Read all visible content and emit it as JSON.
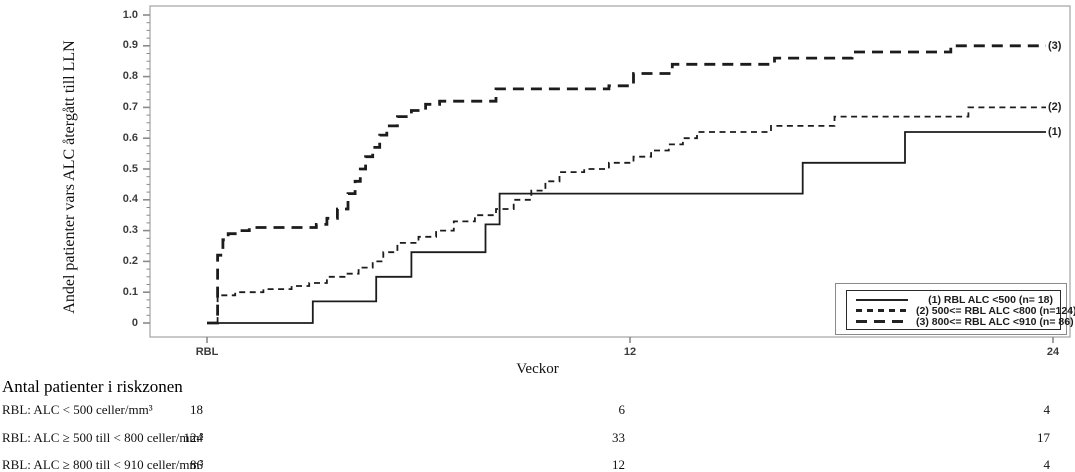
{
  "chart_data": {
    "type": "line",
    "subtype": "step-after",
    "title": "",
    "xlabel": "Veckor",
    "ylabel": "Andel patienter vars ALC återgått till LLN",
    "xlim": [
      0,
      24.5
    ],
    "ylim": [
      0,
      1.0
    ],
    "grid": false,
    "legend_position": "inside bottom-right",
    "y_ticks": [
      {
        "label": "1.0",
        "value": 1.0
      },
      {
        "label": "0.9",
        "value": 0.9
      },
      {
        "label": "0.8",
        "value": 0.8
      },
      {
        "label": "0.7",
        "value": 0.7
      },
      {
        "label": "0.6",
        "value": 0.6
      },
      {
        "label": "0.5",
        "value": 0.5
      },
      {
        "label": "0.4",
        "value": 0.4
      },
      {
        "label": "0.3",
        "value": 0.3
      },
      {
        "label": "0.2",
        "value": 0.2
      },
      {
        "label": "0.1",
        "value": 0.1
      },
      {
        "label": "0",
        "value": 0.0
      }
    ],
    "y_minor_tick_step": 0.025,
    "x_ticks": [
      {
        "label": "RBL",
        "week": 0
      },
      {
        "label": "12",
        "week": 12
      },
      {
        "label": "24",
        "week": 24
      }
    ],
    "series": [
      {
        "name": "(1) RBL ALC <500 (n= 18)",
        "end_label": "(1)",
        "style": "solid",
        "points": [
          [
            0,
            0
          ],
          [
            3.0,
            0.07
          ],
          [
            4.8,
            0.15
          ],
          [
            5.8,
            0.23
          ],
          [
            7.9,
            0.32
          ],
          [
            8.3,
            0.42
          ],
          [
            16.9,
            0.52
          ],
          [
            19.8,
            0.62
          ],
          [
            23.8,
            0.62
          ]
        ]
      },
      {
        "name": "(2) 500<= RBL ALC <800 (n=124)",
        "end_label": "(2)",
        "style": "dash-short",
        "points": [
          [
            0,
            0
          ],
          [
            0.3,
            0.09
          ],
          [
            0.8,
            0.1
          ],
          [
            1.6,
            0.11
          ],
          [
            2.4,
            0.12
          ],
          [
            2.9,
            0.13
          ],
          [
            3.4,
            0.15
          ],
          [
            3.9,
            0.16
          ],
          [
            4.3,
            0.18
          ],
          [
            4.7,
            0.2
          ],
          [
            5.0,
            0.23
          ],
          [
            5.4,
            0.26
          ],
          [
            6.0,
            0.28
          ],
          [
            6.5,
            0.3
          ],
          [
            7.0,
            0.33
          ],
          [
            7.6,
            0.35
          ],
          [
            8.2,
            0.37
          ],
          [
            8.7,
            0.4
          ],
          [
            9.2,
            0.43
          ],
          [
            9.6,
            0.46
          ],
          [
            10.0,
            0.49
          ],
          [
            10.7,
            0.5
          ],
          [
            11.4,
            0.52
          ],
          [
            12.1,
            0.54
          ],
          [
            12.6,
            0.56
          ],
          [
            13.1,
            0.58
          ],
          [
            13.5,
            0.6
          ],
          [
            13.9,
            0.62
          ],
          [
            16.0,
            0.64
          ],
          [
            17.8,
            0.67
          ],
          [
            21.6,
            0.7
          ],
          [
            23.8,
            0.7
          ]
        ]
      },
      {
        "name": "(3) 800<= RBL ALC <910 (n= 86)",
        "end_label": "(3)",
        "style": "dash-long",
        "points": [
          [
            0,
            0
          ],
          [
            0.3,
            0.22
          ],
          [
            0.45,
            0.27
          ],
          [
            0.6,
            0.29
          ],
          [
            0.8,
            0.3
          ],
          [
            1.2,
            0.31
          ],
          [
            3.1,
            0.32
          ],
          [
            3.4,
            0.34
          ],
          [
            3.7,
            0.37
          ],
          [
            4.0,
            0.42
          ],
          [
            4.2,
            0.46
          ],
          [
            4.35,
            0.5
          ],
          [
            4.5,
            0.54
          ],
          [
            4.7,
            0.57
          ],
          [
            4.9,
            0.61
          ],
          [
            5.1,
            0.64
          ],
          [
            5.4,
            0.67
          ],
          [
            5.8,
            0.69
          ],
          [
            6.2,
            0.71
          ],
          [
            6.6,
            0.72
          ],
          [
            8.2,
            0.76
          ],
          [
            11.4,
            0.77
          ],
          [
            12.1,
            0.81
          ],
          [
            13.2,
            0.84
          ],
          [
            16.1,
            0.86
          ],
          [
            18.3,
            0.88
          ],
          [
            21.1,
            0.9
          ],
          [
            23.8,
            0.9
          ]
        ]
      }
    ]
  },
  "risk_table": {
    "heading": "Antal patienter i riskzonen",
    "rows": [
      {
        "label": "RBL: ALC < 500 celler/mm³",
        "values": [
          "18",
          "6",
          "4"
        ]
      },
      {
        "label": "RBL: ALC ≥ 500 till < 800 celler/mm³",
        "values": [
          "124",
          "33",
          "17"
        ]
      },
      {
        "label": "RBL: ALC ≥ 800 till < 910 celler/mm³",
        "values": [
          "86",
          "12",
          "4"
        ]
      }
    ]
  },
  "colors": {
    "curve": "#1c1c1c",
    "frame": "#a3a3a3",
    "tick": "#8a8a8a",
    "tick_text": "#3c3c3c"
  }
}
